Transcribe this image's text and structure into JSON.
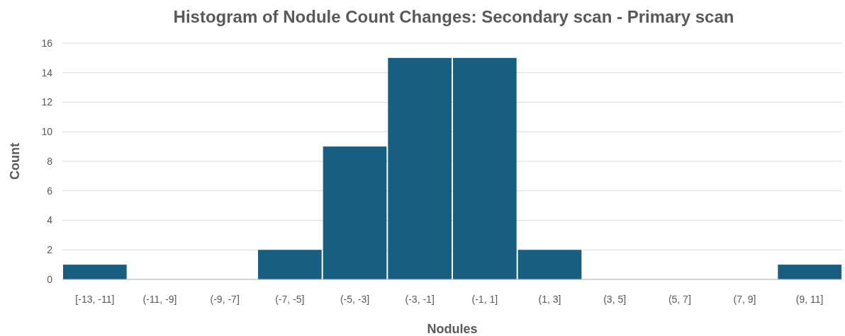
{
  "chart_data": {
    "type": "bar",
    "title": "Histogram of Nodule Count Changes: Secondary scan - Primary scan",
    "xlabel": "Nodules",
    "ylabel": "Count",
    "categories": [
      "[-13, -11]",
      "(-11, -9]",
      "(-9, -7]",
      "(-7, -5]",
      "(-5, -3]",
      "(-3, -1]",
      "(-1, 1]",
      "(1, 3]",
      "(3, 5]",
      "(5, 7]",
      "(7, 9]",
      "(9, 11]"
    ],
    "values": [
      1,
      0,
      0,
      2,
      9,
      15,
      15,
      2,
      0,
      0,
      0,
      1
    ],
    "color": "#175e80",
    "ylim": [
      0,
      16
    ],
    "yticks": [
      0,
      2,
      4,
      6,
      8,
      10,
      12,
      14,
      16
    ],
    "grid": "y"
  }
}
